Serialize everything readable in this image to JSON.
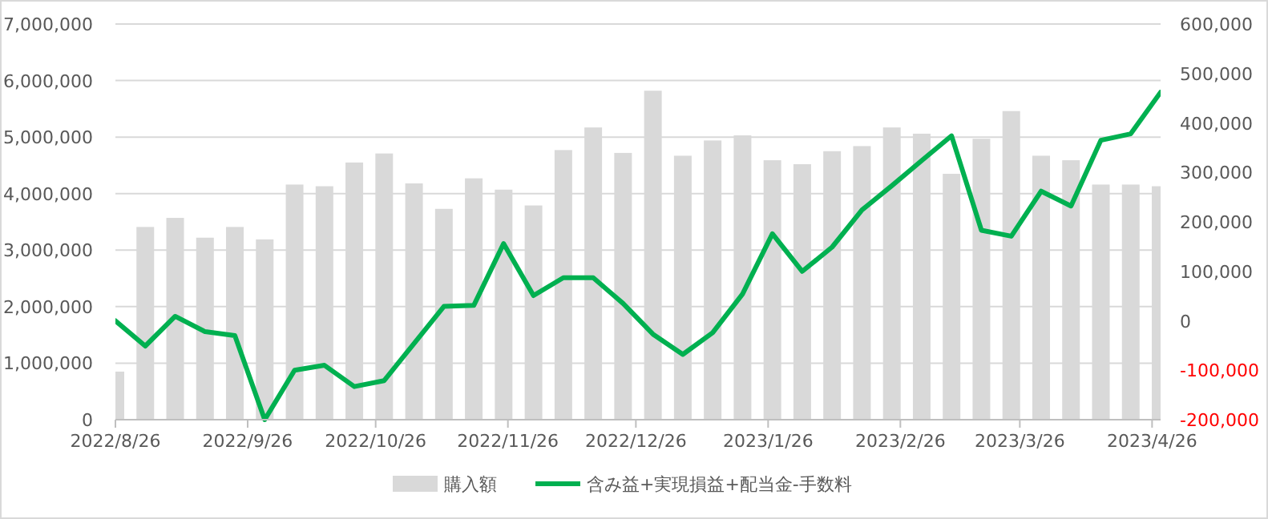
{
  "chart_data": {
    "type": "bar",
    "x": [
      "2022-08-26",
      "2022-09-02",
      "2022-09-09",
      "2022-09-16",
      "2022-09-23",
      "2022-09-30",
      "2022-10-07",
      "2022-10-14",
      "2022-10-21",
      "2022-10-28",
      "2022-11-04",
      "2022-11-11",
      "2022-11-18",
      "2022-11-25",
      "2022-12-02",
      "2022-12-09",
      "2022-12-16",
      "2022-12-23",
      "2022-12-30",
      "2023-01-06",
      "2023-01-13",
      "2023-01-20",
      "2023-01-27",
      "2023-02-03",
      "2023-02-10",
      "2023-02-17",
      "2023-02-24",
      "2023-03-03",
      "2023-03-10",
      "2023-03-17",
      "2023-03-24",
      "2023-03-31",
      "2023-04-07",
      "2023-04-14",
      "2023-04-21",
      "2023-04-28"
    ],
    "series": [
      {
        "name": "購入額",
        "color": "#d9d9d9",
        "values": [
          850000,
          3410000,
          3570000,
          3220000,
          3410000,
          3190000,
          4160000,
          4130000,
          4550000,
          4710000,
          4180000,
          3730000,
          4270000,
          4070000,
          3790000,
          4770000,
          5170000,
          4720000,
          5820000,
          4670000,
          4940000,
          5030000,
          4590000,
          4520000,
          4750000,
          4840000,
          5170000,
          5060000,
          4350000,
          4970000,
          5460000,
          4670000,
          4590000,
          4160000,
          4160000,
          4130000
        ]
      },
      {
        "name": "含み益+実現損益+配当金-手数料",
        "type": "line",
        "axis": "y2",
        "color": "#00b050",
        "values": [
          0,
          -51000,
          9000,
          -22000,
          -30000,
          -200000,
          -100000,
          -90000,
          -133000,
          -121000,
          -46000,
          29000,
          31000,
          156000,
          51000,
          87000,
          87000,
          35000,
          -27000,
          -68000,
          -24000,
          54000,
          176000,
          100000,
          149000,
          224000,
          273000,
          324000,
          374000,
          183000,
          171000,
          262000,
          232000,
          365000,
          378000,
          462000
        ]
      }
    ],
    "xlim": [
      "2022-08-26",
      "2023-04-28"
    ],
    "xticks": [
      {
        "value": "2022-08-26",
        "label": "2022/8/26"
      },
      {
        "value": "2022-09-26",
        "label": "2022/9/26"
      },
      {
        "value": "2022-10-26",
        "label": "2022/10/26"
      },
      {
        "value": "2022-11-26",
        "label": "2022/11/26"
      },
      {
        "value": "2022-12-26",
        "label": "2022/12/26"
      },
      {
        "value": "2023-01-26",
        "label": "2023/1/26"
      },
      {
        "value": "2023-02-26",
        "label": "2023/2/26"
      },
      {
        "value": "2023-03-26",
        "label": "2023/3/26"
      },
      {
        "value": "2023-04-26",
        "label": "2023/4/26"
      }
    ],
    "ylim": [
      0,
      7000000
    ],
    "yticks": [
      0,
      {
        "value": 1000000,
        "label": "1,000,000"
      },
      {
        "value": 2000000,
        "label": "2,000,000"
      },
      {
        "value": 3000000,
        "label": "3,000,000"
      },
      {
        "value": 4000000,
        "label": "4,000,000"
      },
      {
        "value": 5000000,
        "label": "5,000,000"
      },
      {
        "value": 6000000,
        "label": "6,000,000"
      },
      {
        "value": 7000000,
        "label": "7,000,000"
      }
    ],
    "y2lim": [
      -200000,
      600000
    ],
    "y2ticks": [
      {
        "value": -200000,
        "label": "-200,000"
      },
      {
        "value": -100000,
        "label": "-100,000"
      },
      0,
      {
        "value": 100000,
        "label": "100,000"
      },
      {
        "value": 200000,
        "label": "200,000"
      },
      {
        "value": 300000,
        "label": "300,000"
      },
      {
        "value": 400000,
        "label": "400,000"
      },
      {
        "value": 500000,
        "label": "500,000"
      },
      {
        "value": 600000,
        "label": "600,000"
      }
    ],
    "grid": "y",
    "legend": "bottom",
    "marker": "none",
    "line_style": "solid"
  }
}
